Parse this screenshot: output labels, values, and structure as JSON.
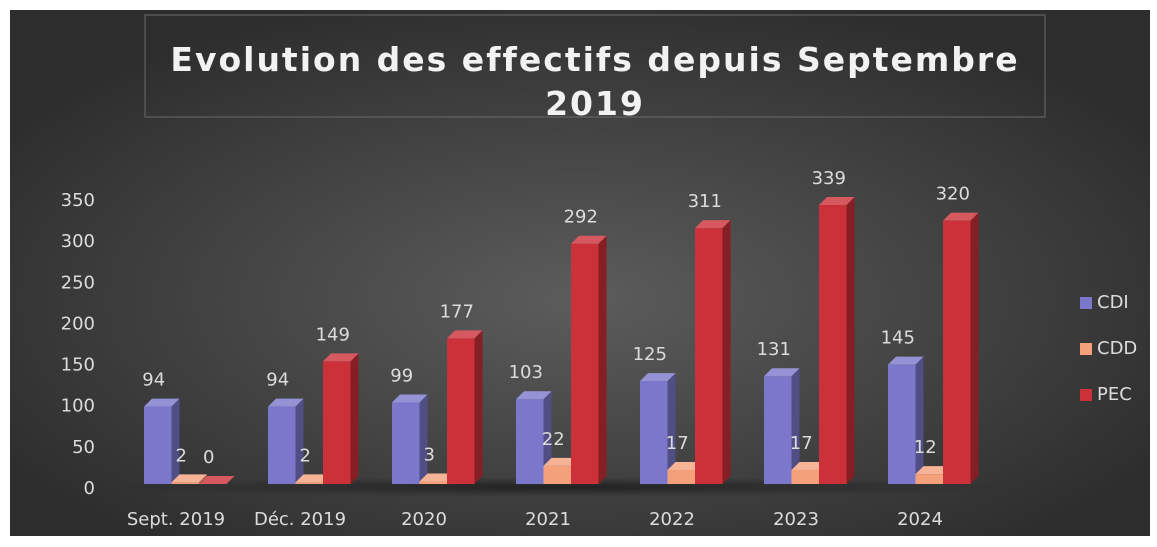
{
  "chart_data": {
    "type": "bar3d",
    "title": "Evolution des effectifs depuis Septembre 2019",
    "categories": [
      "Sept. 2019",
      "Déc. 2019",
      "2020",
      "2021",
      "2022",
      "2023",
      "2024"
    ],
    "series": [
      {
        "name": "CDI",
        "color": "#7b78cc",
        "values": [
          94,
          94,
          99,
          103,
          125,
          131,
          145
        ]
      },
      {
        "name": "CDD",
        "color": "#f4a07a",
        "values": [
          2,
          2,
          3,
          22,
          17,
          17,
          12
        ]
      },
      {
        "name": "PEC",
        "color": "#cc3038",
        "values": [
          0,
          149,
          177,
          292,
          311,
          339,
          320
        ]
      }
    ],
    "ylim": [
      0,
      350
    ],
    "yticks": [
      0,
      50,
      100,
      150,
      200,
      250,
      300,
      350
    ],
    "grid": false,
    "legend": "right"
  }
}
